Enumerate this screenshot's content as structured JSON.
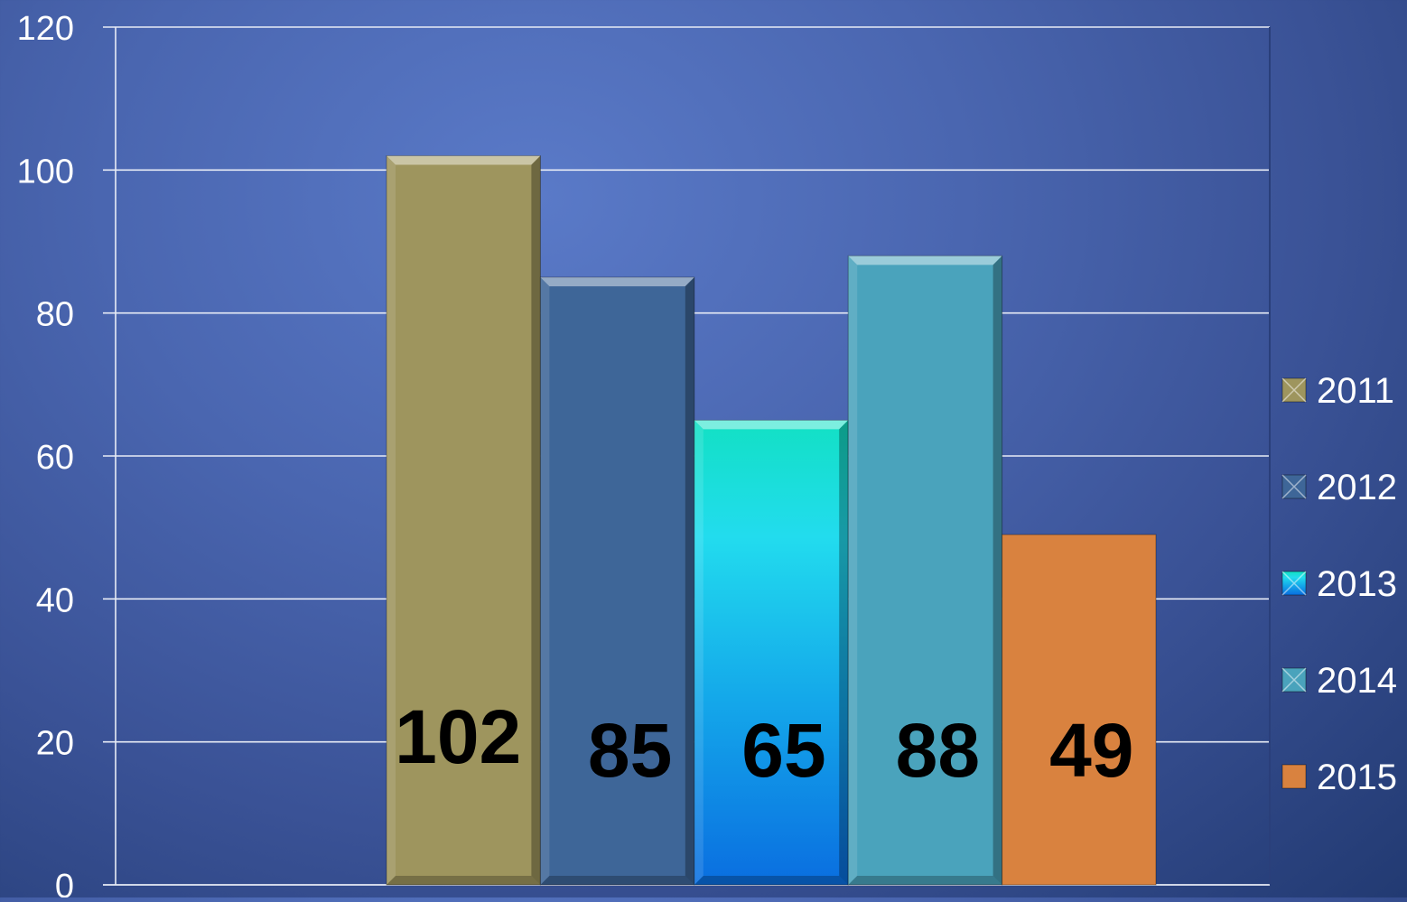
{
  "chart_data": {
    "type": "bar",
    "title": "",
    "xlabel": "",
    "ylabel": "",
    "ylim": [
      0,
      120
    ],
    "yticks": [
      0,
      20,
      40,
      60,
      80,
      100,
      120
    ],
    "grid": true,
    "legend_position": "right",
    "series": [
      {
        "name": "2011",
        "value": 102,
        "color": "#9e955e",
        "label": "102"
      },
      {
        "name": "2012",
        "value": 85,
        "color": "#3e6698",
        "label": "85"
      },
      {
        "name": "2013",
        "value": 65,
        "color": "#20c8e6",
        "label": "65"
      },
      {
        "name": "2014",
        "value": 88,
        "color": "#4aa3bc",
        "label": "88"
      },
      {
        "name": "2015",
        "value": 49,
        "color": "#d9823f",
        "label": "49"
      }
    ]
  }
}
